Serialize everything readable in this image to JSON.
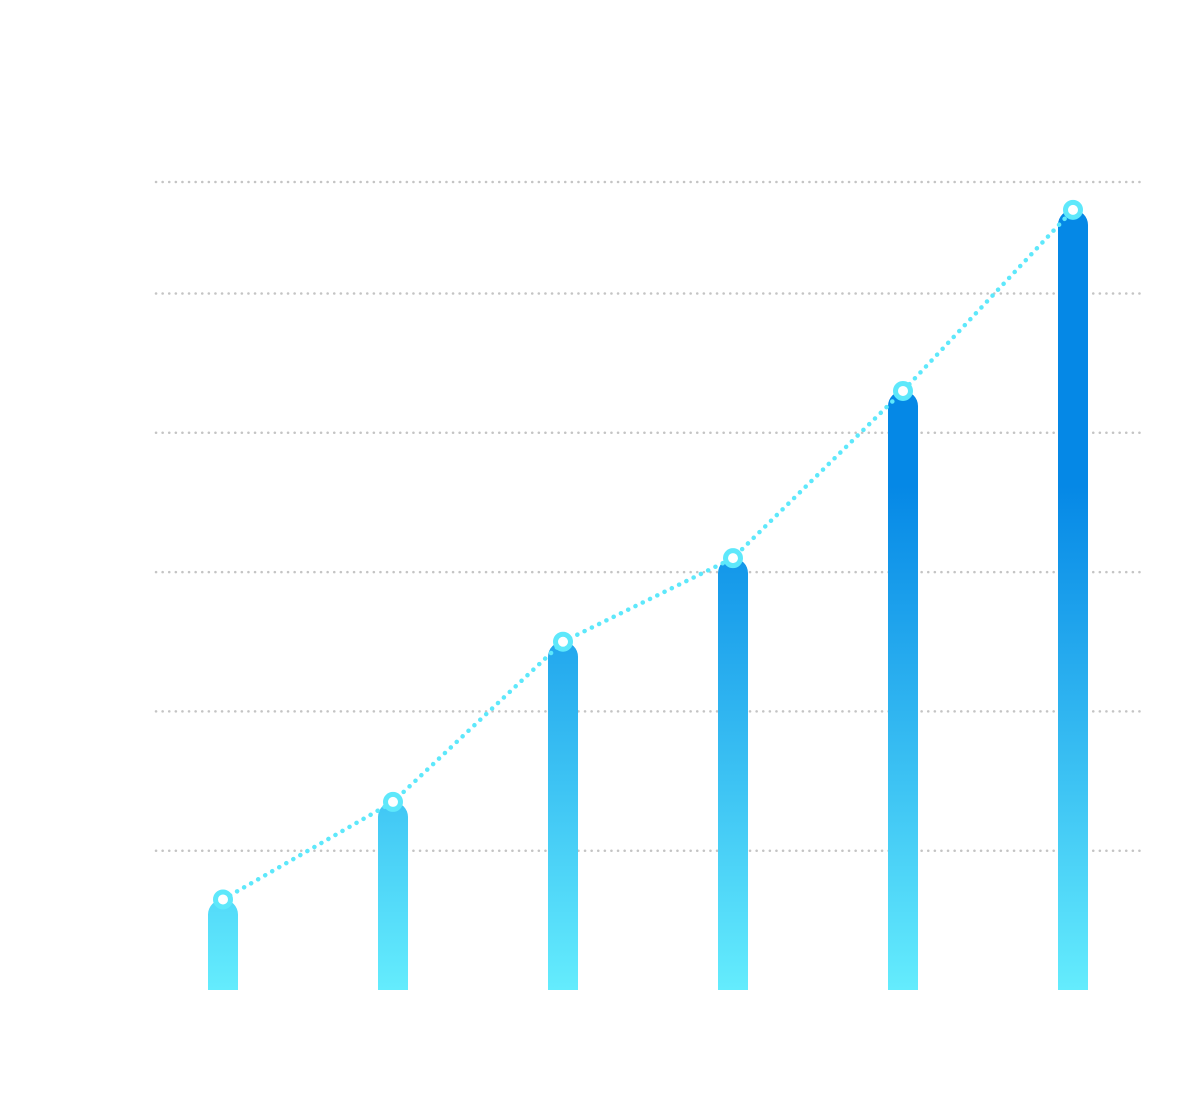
{
  "chart_data": {
    "type": "bar",
    "categories": [
      "",
      "",
      "",
      "",
      "",
      ""
    ],
    "values": [
      0.65,
      1.35,
      2.5,
      3.1,
      4.3,
      5.6
    ],
    "title": "",
    "xlabel": "",
    "ylabel": "",
    "ylim": [
      0,
      5.8
    ],
    "gridlines": [
      1,
      2,
      3,
      4,
      5,
      5.8
    ],
    "grid": true,
    "grid_style": "dotted",
    "overlay_line": {
      "style": "dotted",
      "markers": "ring",
      "values": [
        0.65,
        1.35,
        2.5,
        3.1,
        4.3,
        5.6
      ]
    },
    "colors": {
      "bar_top": "#0588e6",
      "bar_bottom": "#64ecfd",
      "line": "#5ee8fb",
      "grid": "#c4c4c4"
    }
  }
}
